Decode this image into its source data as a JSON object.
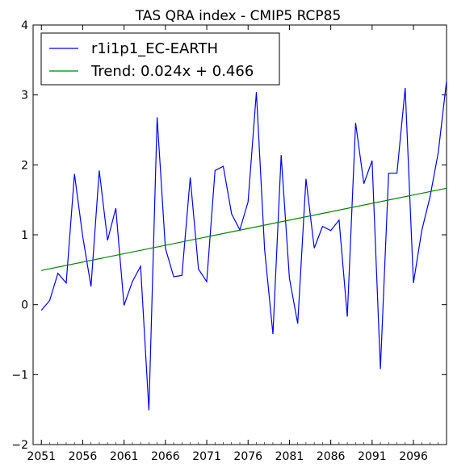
{
  "chart_data": {
    "type": "line",
    "title": "TAS QRA index - CMIP5 RCP85",
    "xlabel": "",
    "ylabel": "",
    "xlim": [
      2050,
      2100
    ],
    "ylim": [
      -2,
      4
    ],
    "xticks": [
      "2051",
      "2056",
      "2061",
      "2066",
      "2071",
      "2076",
      "2081",
      "2086",
      "2091",
      "2096"
    ],
    "yticks": [
      "−2",
      "−1",
      "0",
      "1",
      "2",
      "3",
      "4"
    ],
    "grid": false,
    "legend_position": "top-left",
    "series": [
      {
        "name": "r1i1p1_EC-EARTH",
        "color": "#0000ff",
        "x": [
          2051,
          2052,
          2053,
          2054,
          2055,
          2056,
          2057,
          2058,
          2059,
          2060,
          2061,
          2062,
          2063,
          2064,
          2065,
          2066,
          2067,
          2068,
          2069,
          2070,
          2071,
          2072,
          2073,
          2074,
          2075,
          2076,
          2077,
          2078,
          2079,
          2080,
          2081,
          2082,
          2083,
          2084,
          2085,
          2086,
          2087,
          2088,
          2089,
          2090,
          2091,
          2092,
          2093,
          2094,
          2095,
          2096,
          2097,
          2098,
          2099,
          2100
        ],
        "y": [
          -0.08,
          0.06,
          0.45,
          0.31,
          1.87,
          0.98,
          0.26,
          1.92,
          0.92,
          1.38,
          -0.01,
          0.33,
          0.55,
          -1.51,
          2.68,
          0.81,
          0.4,
          0.42,
          1.82,
          0.51,
          0.33,
          1.92,
          1.98,
          1.3,
          1.07,
          1.47,
          3.04,
          0.79,
          -0.42,
          2.14,
          0.38,
          -0.27,
          1.8,
          0.81,
          1.12,
          1.06,
          1.21,
          -0.17,
          2.6,
          1.73,
          2.06,
          -0.92,
          1.88,
          1.88,
          3.1,
          0.31,
          1.06,
          1.54,
          2.18,
          3.2
        ]
      },
      {
        "name": "Trend: 0.024x + 0.466",
        "color": "#008000",
        "x": [
          2051,
          2100
        ],
        "y": [
          0.49,
          1.666
        ]
      }
    ]
  }
}
